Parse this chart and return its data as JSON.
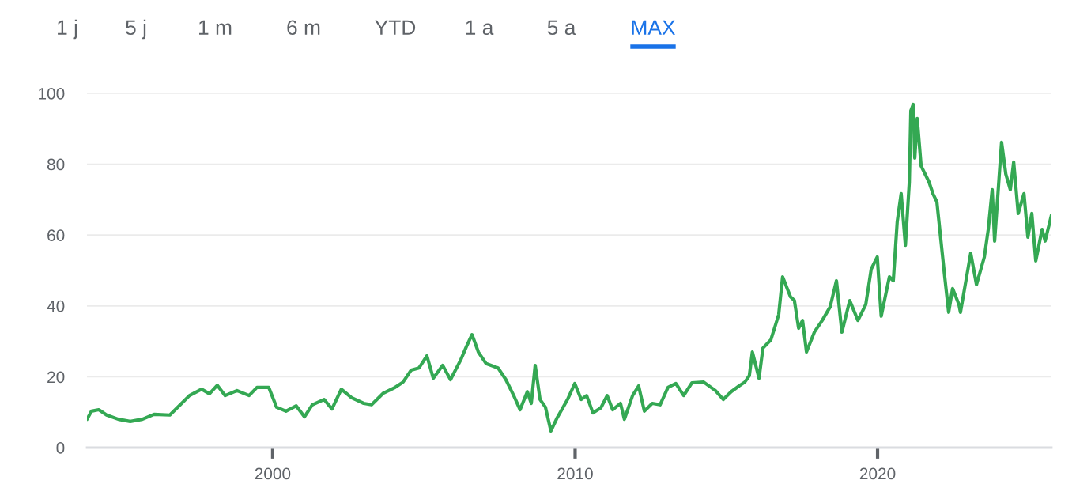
{
  "chart_data": {
    "type": "line",
    "annotations": [
      "1 j",
      "5 j",
      "1 m",
      "6 m",
      "YTD",
      "1 a",
      "5 a",
      "MAX"
    ],
    "xlim": [
      1993.86,
      2025.75
    ],
    "xticks": [
      2000,
      2010,
      2020
    ],
    "ylim": [
      0,
      100
    ],
    "yticks": [
      0,
      20,
      40,
      60,
      80,
      100
    ],
    "grid": "y",
    "legend": false,
    "line_style": "solid",
    "series": [
      {
        "color": "#34a853",
        "x": [
          1993.86,
          1994.01,
          1994.25,
          1994.51,
          1994.9,
          1995.29,
          1995.69,
          1996.08,
          1996.6,
          1996.99,
          1997.25,
          1997.65,
          1997.91,
          1998.17,
          1998.43,
          1998.82,
          1999.22,
          1999.48,
          1999.87,
          2000.13,
          2000.44,
          2000.78,
          2001.05,
          2001.31,
          2001.7,
          2001.96,
          2002.27,
          2002.61,
          2003.01,
          2003.27,
          2003.66,
          2004.05,
          2004.31,
          2004.58,
          2004.84,
          2005.1,
          2005.31,
          2005.62,
          2005.88,
          2006.22,
          2006.41,
          2006.59,
          2006.8,
          2007.06,
          2007.45,
          2007.71,
          2007.97,
          2008.18,
          2008.42,
          2008.55,
          2008.68,
          2008.84,
          2009.02,
          2009.2,
          2009.41,
          2009.75,
          2009.99,
          2010.2,
          2010.38,
          2010.59,
          2010.85,
          2011.06,
          2011.24,
          2011.5,
          2011.63,
          2011.9,
          2012.1,
          2012.29,
          2012.55,
          2012.81,
          2013.07,
          2013.33,
          2013.59,
          2013.86,
          2014.25,
          2014.64,
          2014.9,
          2015.16,
          2015.42,
          2015.61,
          2015.76,
          2015.86,
          2016.08,
          2016.21,
          2016.47,
          2016.73,
          2016.86,
          2017.12,
          2017.25,
          2017.39,
          2017.52,
          2017.65,
          2017.91,
          2018.17,
          2018.43,
          2018.64,
          2018.82,
          2019.08,
          2019.35,
          2019.61,
          2019.79,
          2019.99,
          2020.12,
          2020.39,
          2020.52,
          2020.65,
          2020.78,
          2020.92,
          2021.05,
          2021.1,
          2021.18,
          2021.23,
          2021.31,
          2021.44,
          2021.7,
          2021.83,
          2021.96,
          2022.22,
          2022.35,
          2022.48,
          2022.69,
          2022.74,
          2023.08,
          2023.27,
          2023.53,
          2023.66,
          2023.79,
          2023.87,
          2024.1,
          2024.24,
          2024.39,
          2024.5,
          2024.65,
          2024.84,
          2024.97,
          2025.1,
          2025.23,
          2025.44,
          2025.54,
          2025.75
        ],
        "values": [
          8.0,
          10.3,
          10.7,
          9.2,
          8.0,
          7.4,
          8.0,
          9.4,
          9.2,
          12.5,
          14.7,
          16.5,
          15.2,
          17.6,
          14.7,
          16.1,
          14.7,
          17.0,
          17.0,
          11.4,
          10.3,
          11.8,
          8.7,
          12.1,
          13.6,
          10.9,
          16.5,
          14.1,
          12.5,
          12.1,
          15.4,
          17.0,
          18.5,
          21.9,
          22.5,
          25.9,
          19.6,
          23.2,
          19.2,
          24.8,
          28.6,
          31.9,
          27.0,
          23.7,
          22.5,
          19.2,
          14.7,
          10.7,
          15.8,
          12.5,
          23.2,
          13.6,
          11.4,
          4.7,
          8.5,
          13.6,
          18.1,
          13.6,
          14.7,
          9.8,
          11.2,
          14.7,
          10.7,
          12.5,
          8.0,
          14.7,
          17.4,
          10.3,
          12.5,
          12.1,
          17.0,
          18.1,
          14.7,
          18.3,
          18.5,
          16.1,
          13.6,
          15.8,
          17.4,
          18.5,
          20.3,
          27.0,
          19.6,
          28.1,
          30.4,
          37.5,
          48.2,
          42.6,
          41.5,
          33.7,
          35.9,
          27.0,
          32.6,
          35.9,
          39.7,
          47.1,
          32.6,
          41.5,
          35.9,
          40.4,
          50.4,
          53.8,
          37.1,
          48.2,
          47.1,
          63.8,
          71.7,
          57.1,
          75.0,
          95.1,
          96.9,
          81.7,
          92.9,
          79.5,
          75.0,
          71.7,
          69.4,
          48.2,
          38.2,
          44.9,
          40.4,
          38.2,
          54.9,
          46.0,
          53.8,
          61.6,
          72.8,
          58.3,
          86.2,
          77.2,
          72.8,
          80.6,
          66.1,
          71.7,
          59.4,
          66.1,
          52.7,
          61.6,
          58.3,
          65.6
        ]
      }
    ]
  }
}
